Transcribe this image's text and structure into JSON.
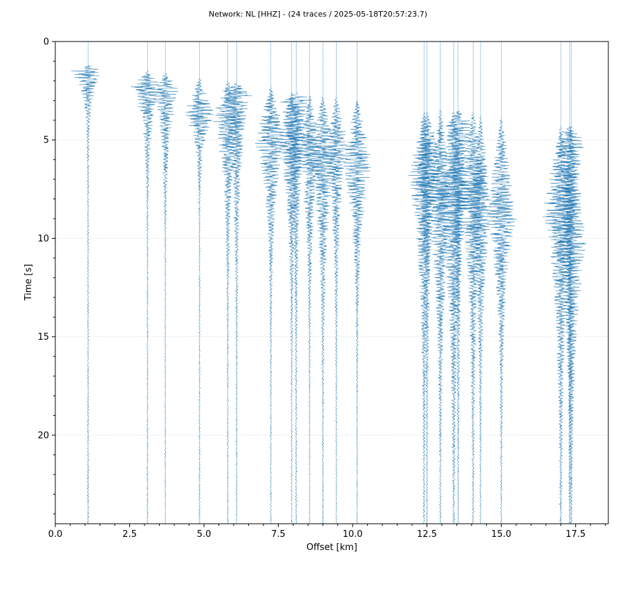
{
  "chart_data": {
    "type": "line",
    "subtype": "seismic-record-section",
    "title": "Network: NL [HHZ] - (24 traces / 2025-05-18T20:57:23.7)",
    "xlabel": "Offset [km]",
    "ylabel": "Time [s]",
    "xlim": [
      0.0,
      18.6
    ],
    "ylim": [
      24.5,
      0
    ],
    "y_inverted": true,
    "xticks": [
      "0.0",
      "2.5",
      "5.0",
      "7.5",
      "10.0",
      "12.5",
      "15.0",
      "17.5"
    ],
    "yticks": [
      "0",
      "5",
      "10",
      "15",
      "20"
    ],
    "grid": "horizontal dotted",
    "trace_color": "#1f77b4",
    "series": [
      {
        "offset_km": 1.1,
        "onset_s": 1.2,
        "peak_s": 1.5,
        "amp_km": 0.5,
        "decay_s": 1.0
      },
      {
        "offset_km": 3.1,
        "onset_s": 1.5,
        "peak_s": 2.3,
        "amp_km": 0.45,
        "decay_s": 1.6
      },
      {
        "offset_km": 3.7,
        "onset_s": 1.6,
        "peak_s": 2.5,
        "amp_km": 0.4,
        "decay_s": 2.0
      },
      {
        "offset_km": 4.85,
        "onset_s": 1.9,
        "peak_s": 3.7,
        "amp_km": 0.45,
        "decay_s": 1.2
      },
      {
        "offset_km": 5.8,
        "onset_s": 2.0,
        "peak_s": 3.8,
        "amp_km": 0.45,
        "decay_s": 2.5
      },
      {
        "offset_km": 6.1,
        "onset_s": 2.1,
        "peak_s": 2.6,
        "amp_km": 0.45,
        "decay_s": 3.0
      },
      {
        "offset_km": 7.25,
        "onset_s": 2.3,
        "peak_s": 5.0,
        "amp_km": 0.45,
        "decay_s": 2.5
      },
      {
        "offset_km": 7.95,
        "onset_s": 2.6,
        "peak_s": 5.0,
        "amp_km": 0.4,
        "decay_s": 3.0
      },
      {
        "offset_km": 8.1,
        "onset_s": 2.6,
        "peak_s": 2.9,
        "amp_km": 0.45,
        "decay_s": 3.5
      },
      {
        "offset_km": 8.55,
        "onset_s": 2.7,
        "peak_s": 5.5,
        "amp_km": 0.35,
        "decay_s": 3.0
      },
      {
        "offset_km": 9.0,
        "onset_s": 2.8,
        "peak_s": 5.8,
        "amp_km": 0.45,
        "decay_s": 3.0
      },
      {
        "offset_km": 9.45,
        "onset_s": 2.8,
        "peak_s": 5.4,
        "amp_km": 0.35,
        "decay_s": 3.0
      },
      {
        "offset_km": 10.15,
        "onset_s": 3.0,
        "peak_s": 6.3,
        "amp_km": 0.45,
        "decay_s": 2.5
      },
      {
        "offset_km": 12.4,
        "onset_s": 3.6,
        "peak_s": 6.9,
        "amp_km": 0.45,
        "decay_s": 4.0
      },
      {
        "offset_km": 12.5,
        "onset_s": 3.6,
        "peak_s": 5.2,
        "amp_km": 0.35,
        "decay_s": 4.5
      },
      {
        "offset_km": 12.95,
        "onset_s": 3.4,
        "peak_s": 8.0,
        "amp_km": 0.4,
        "decay_s": 4.0
      },
      {
        "offset_km": 13.4,
        "onset_s": 3.6,
        "peak_s": 7.9,
        "amp_km": 0.55,
        "decay_s": 4.0
      },
      {
        "offset_km": 13.55,
        "onset_s": 3.5,
        "peak_s": 4.2,
        "amp_km": 0.4,
        "decay_s": 4.5
      },
      {
        "offset_km": 14.05,
        "onset_s": 3.6,
        "peak_s": 7.6,
        "amp_km": 0.45,
        "decay_s": 4.0
      },
      {
        "offset_km": 14.3,
        "onset_s": 3.8,
        "peak_s": 8.4,
        "amp_km": 0.35,
        "decay_s": 3.5
      },
      {
        "offset_km": 15.0,
        "onset_s": 3.9,
        "peak_s": 8.9,
        "amp_km": 0.45,
        "decay_s": 3.0
      },
      {
        "offset_km": 17.0,
        "onset_s": 4.3,
        "peak_s": 8.7,
        "amp_km": 0.5,
        "decay_s": 4.0
      },
      {
        "offset_km": 17.3,
        "onset_s": 4.3,
        "peak_s": 5.0,
        "amp_km": 0.4,
        "decay_s": 5.0
      },
      {
        "offset_km": 17.35,
        "onset_s": 4.3,
        "peak_s": 10.2,
        "amp_km": 0.45,
        "decay_s": 4.0
      }
    ]
  }
}
